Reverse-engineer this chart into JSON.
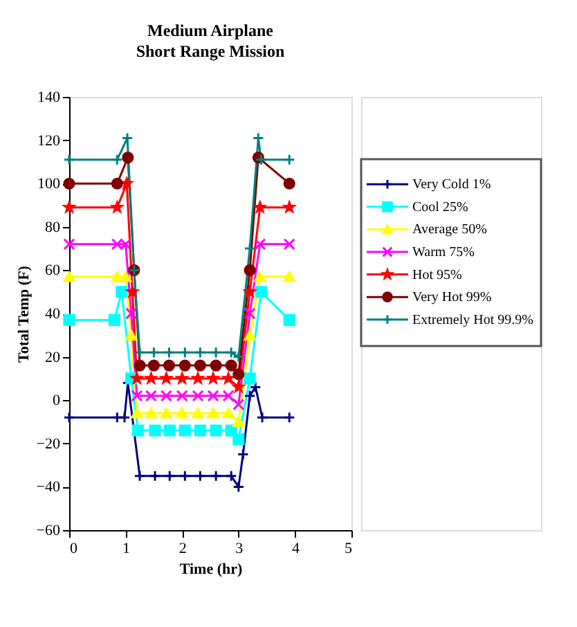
{
  "chart_data": {
    "type": "line",
    "title": "Medium Airplane",
    "subtitle": "Short Range Mission",
    "xlabel": "Time (hr)",
    "ylabel": "Total Temp (F)",
    "xlim": [
      0,
      5
    ],
    "xticks": [
      0,
      1,
      2,
      3,
      4,
      5
    ],
    "ylim": [
      -60,
      140
    ],
    "yticks": [
      -60,
      -40,
      -20,
      0,
      20,
      40,
      60,
      80,
      100,
      120,
      140
    ],
    "grid": false,
    "legend": "right",
    "series": [
      {
        "name": "Very Cold 1%",
        "color": "#000080",
        "marker": "cross",
        "x": [
          0,
          0.85,
          0.98,
          1.04,
          1.25,
          1.52,
          1.78,
          2.05,
          2.32,
          2.6,
          2.87,
          3.0,
          3.08,
          3.2,
          3.3,
          3.42,
          3.9
        ],
        "values": [
          -8,
          -8,
          -8,
          8,
          -35,
          -35,
          -35,
          -35,
          -35,
          -35,
          -35,
          -40,
          -25,
          2,
          6,
          -8,
          -8
        ]
      },
      {
        "name": "Cool 25%",
        "color": "#00ffff",
        "marker": "square",
        "x": [
          0,
          0.8,
          0.93,
          1.1,
          1.22,
          1.52,
          1.78,
          2.05,
          2.32,
          2.6,
          2.87,
          3.0,
          3.2,
          3.4,
          3.9
        ],
        "values": [
          37,
          37,
          50,
          10,
          -14,
          -14,
          -14,
          -14,
          -14,
          -14,
          -14,
          -18,
          10,
          50,
          37
        ]
      },
      {
        "name": "Average 50%",
        "color": "#ffff00",
        "marker": "triangle",
        "x": [
          0,
          0.85,
          1.0,
          1.1,
          1.2,
          1.45,
          1.72,
          2.0,
          2.28,
          2.55,
          2.82,
          3.0,
          3.2,
          3.38,
          3.9
        ],
        "values": [
          57,
          57,
          57,
          30,
          -6,
          -6,
          -6,
          -6,
          -6,
          -6,
          -6,
          -10,
          30,
          57,
          57
        ]
      },
      {
        "name": "Warm 75%",
        "color": "#ff00ff",
        "marker": "x",
        "x": [
          0,
          0.85,
          1.0,
          1.1,
          1.2,
          1.45,
          1.72,
          2.0,
          2.28,
          2.55,
          2.82,
          3.0,
          3.2,
          3.38,
          3.9
        ],
        "values": [
          72,
          72,
          72,
          40,
          2,
          2,
          2,
          2,
          2,
          2,
          2,
          -2,
          40,
          72,
          72
        ]
      },
      {
        "name": "Hot 95%",
        "color": "#ff0000",
        "marker": "star",
        "x": [
          0,
          0.85,
          1.02,
          1.12,
          1.2,
          1.45,
          1.72,
          2.0,
          2.28,
          2.55,
          2.82,
          3.0,
          3.2,
          3.38,
          3.9
        ],
        "values": [
          89,
          89,
          100,
          50,
          10,
          10,
          10,
          10,
          10,
          10,
          10,
          6,
          50,
          89,
          89
        ]
      },
      {
        "name": "Very Hot 99%",
        "color": "#800000",
        "marker": "circle",
        "x": [
          0,
          0.85,
          1.04,
          1.15,
          1.25,
          1.5,
          1.77,
          2.05,
          2.32,
          2.6,
          2.87,
          3.0,
          3.2,
          3.35,
          3.9
        ],
        "values": [
          100,
          100,
          112,
          60,
          16,
          16,
          16,
          16,
          16,
          16,
          16,
          12,
          60,
          112,
          100
        ]
      },
      {
        "name": "Extremely Hot 99.9%",
        "color": "#008080",
        "marker": "cross",
        "x": [
          0,
          0.85,
          1.03,
          1.15,
          1.25,
          1.5,
          1.77,
          2.05,
          2.32,
          2.6,
          2.87,
          3.0,
          3.2,
          3.35,
          3.4,
          3.9
        ],
        "values": [
          111,
          111,
          121,
          60,
          22,
          22,
          22,
          22,
          22,
          22,
          22,
          20,
          70,
          121,
          111,
          111
        ]
      }
    ]
  }
}
